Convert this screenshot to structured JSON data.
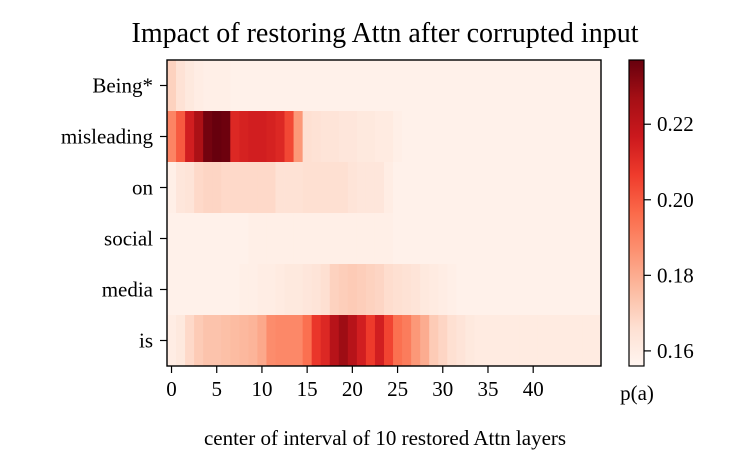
{
  "chart_data": {
    "type": "heatmap",
    "title": "Impact of restoring Attn after corrupted input",
    "xlabel": "center of interval of 10 restored Attn layers",
    "ylabel": "",
    "rows": [
      "Being*",
      "misleading",
      "on",
      "social",
      "media",
      "is"
    ],
    "x_ticks": [
      0,
      5,
      10,
      15,
      20,
      25,
      30,
      35,
      40
    ],
    "x_range": [
      0,
      47
    ],
    "colorbar": {
      "label": "p(a)",
      "ticks": [
        0.16,
        0.18,
        0.2,
        0.22
      ],
      "tick_labels": [
        "0.16",
        "0.18",
        "0.20",
        "0.22"
      ],
      "range": [
        0.156,
        0.237
      ],
      "colormap": "Reds"
    },
    "values": [
      [
        0.17,
        0.165,
        0.162,
        0.16,
        0.159,
        0.159,
        0.159,
        0.158,
        0.158,
        0.158,
        0.158,
        0.158,
        0.158,
        0.158,
        0.158,
        0.158,
        0.158,
        0.158,
        0.158,
        0.158,
        0.158,
        0.158,
        0.158,
        0.158,
        0.158,
        0.158,
        0.158,
        0.158,
        0.158,
        0.158,
        0.158,
        0.158,
        0.158,
        0.158,
        0.158,
        0.158,
        0.158,
        0.158,
        0.158,
        0.158,
        0.158,
        0.158,
        0.158,
        0.158,
        0.158,
        0.158,
        0.158,
        0.158
      ],
      [
        0.19,
        0.2,
        0.215,
        0.225,
        0.235,
        0.237,
        0.236,
        0.212,
        0.214,
        0.215,
        0.215,
        0.214,
        0.212,
        0.204,
        0.185,
        0.166,
        0.165,
        0.164,
        0.164,
        0.163,
        0.163,
        0.162,
        0.162,
        0.161,
        0.161,
        0.159,
        0.158,
        0.158,
        0.158,
        0.158,
        0.158,
        0.158,
        0.158,
        0.158,
        0.158,
        0.158,
        0.158,
        0.158,
        0.158,
        0.158,
        0.158,
        0.158,
        0.158,
        0.158,
        0.158,
        0.158,
        0.158,
        0.158
      ],
      [
        0.159,
        0.163,
        0.164,
        0.168,
        0.169,
        0.169,
        0.168,
        0.168,
        0.168,
        0.168,
        0.168,
        0.168,
        0.165,
        0.165,
        0.165,
        0.166,
        0.166,
        0.166,
        0.166,
        0.166,
        0.164,
        0.163,
        0.163,
        0.163,
        0.16,
        0.158,
        0.158,
        0.158,
        0.158,
        0.158,
        0.158,
        0.158,
        0.158,
        0.158,
        0.158,
        0.158,
        0.158,
        0.158,
        0.158,
        0.158,
        0.158,
        0.158,
        0.158,
        0.158,
        0.158,
        0.158,
        0.158,
        0.158
      ],
      [
        0.158,
        0.158,
        0.158,
        0.158,
        0.158,
        0.158,
        0.158,
        0.158,
        0.158,
        0.159,
        0.159,
        0.159,
        0.159,
        0.159,
        0.159,
        0.159,
        0.159,
        0.159,
        0.159,
        0.159,
        0.159,
        0.159,
        0.159,
        0.159,
        0.159,
        0.158,
        0.158,
        0.158,
        0.158,
        0.158,
        0.158,
        0.158,
        0.158,
        0.158,
        0.158,
        0.158,
        0.158,
        0.158,
        0.158,
        0.158,
        0.158,
        0.158,
        0.158,
        0.158,
        0.158,
        0.158,
        0.158,
        0.158
      ],
      [
        0.158,
        0.158,
        0.158,
        0.158,
        0.158,
        0.158,
        0.158,
        0.158,
        0.159,
        0.159,
        0.16,
        0.16,
        0.161,
        0.162,
        0.162,
        0.163,
        0.164,
        0.166,
        0.17,
        0.171,
        0.172,
        0.171,
        0.17,
        0.169,
        0.167,
        0.166,
        0.165,
        0.164,
        0.162,
        0.161,
        0.16,
        0.159,
        0.158,
        0.158,
        0.158,
        0.158,
        0.158,
        0.158,
        0.158,
        0.158,
        0.158,
        0.158,
        0.158,
        0.158,
        0.158,
        0.158,
        0.158,
        0.158
      ],
      [
        0.16,
        0.162,
        0.168,
        0.172,
        0.174,
        0.174,
        0.175,
        0.176,
        0.177,
        0.178,
        0.181,
        0.188,
        0.189,
        0.189,
        0.189,
        0.195,
        0.208,
        0.212,
        0.222,
        0.228,
        0.222,
        0.215,
        0.207,
        0.215,
        0.205,
        0.195,
        0.192,
        0.185,
        0.18,
        0.172,
        0.169,
        0.166,
        0.164,
        0.162,
        0.161,
        0.161,
        0.161,
        0.161,
        0.161,
        0.161,
        0.161,
        0.161,
        0.161,
        0.161,
        0.161,
        0.161,
        0.161,
        0.161
      ]
    ]
  }
}
